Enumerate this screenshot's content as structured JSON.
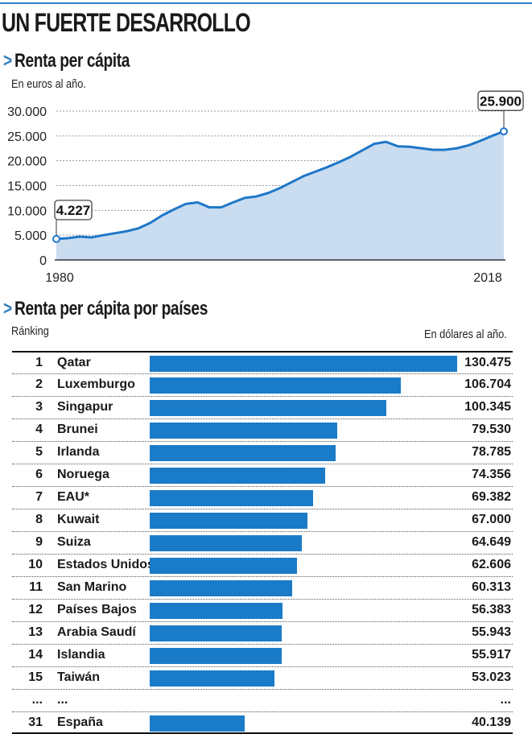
{
  "header": {
    "title": "UN FUERTE DESARROLLO"
  },
  "line_section": {
    "chevron": ">",
    "title": "Renta per cápita",
    "unit": "En euros al año."
  },
  "bar_section": {
    "chevron": ">",
    "title": "Renta per cápita por países",
    "rank_label": "Ránking",
    "unit": "En dólares al año."
  },
  "chart_data": [
    {
      "type": "area",
      "title": "Renta per cápita",
      "ylabel": "En euros al año.",
      "x_range": [
        1980,
        2018
      ],
      "ylim": [
        0,
        30000
      ],
      "yticks": [
        0,
        5000,
        10000,
        15000,
        20000,
        25000,
        30000
      ],
      "ytick_labels": [
        "0",
        "5.000",
        "10.000",
        "15.000",
        "20.000",
        "25.000",
        "30.000"
      ],
      "xtick_labels": [
        "1980",
        "2018"
      ],
      "grid": "horizontal",
      "color": "#1f77c8",
      "fill": "#c9dcf0",
      "x": [
        1980,
        1981,
        1982,
        1983,
        1984,
        1985,
        1986,
        1987,
        1988,
        1989,
        1990,
        1991,
        1992,
        1993,
        1994,
        1995,
        1996,
        1997,
        1998,
        1999,
        2000,
        2001,
        2002,
        2003,
        2004,
        2005,
        2006,
        2007,
        2008,
        2009,
        2010,
        2011,
        2012,
        2013,
        2014,
        2015,
        2016,
        2017,
        2018
      ],
      "y": [
        4227,
        4400,
        4700,
        4550,
        5000,
        5400,
        5800,
        6400,
        7500,
        9000,
        10200,
        11300,
        11600,
        10600,
        10600,
        11600,
        12500,
        12800,
        13500,
        14500,
        15700,
        16900,
        17800,
        18700,
        19700,
        20800,
        22100,
        23400,
        23800,
        22900,
        22800,
        22500,
        22200,
        22200,
        22500,
        23100,
        24000,
        25000,
        25900
      ],
      "annotations": [
        {
          "x": 1980,
          "y": 4227,
          "label": "4.227"
        },
        {
          "x": 2018,
          "y": 25900,
          "label": "25.900"
        }
      ]
    },
    {
      "type": "bar",
      "orientation": "horizontal",
      "title": "Renta per cápita por países",
      "ylabel": "En dólares al año.",
      "color": "#1a7bc8",
      "rows": [
        {
          "rank": "1",
          "name": "Qatar",
          "value": 130475,
          "label": "130.475"
        },
        {
          "rank": "2",
          "name": "Luxemburgo",
          "value": 106704,
          "label": "106.704"
        },
        {
          "rank": "3",
          "name": "Singapur",
          "value": 100345,
          "label": "100.345"
        },
        {
          "rank": "4",
          "name": "Brunei",
          "value": 79530,
          "label": "79.530"
        },
        {
          "rank": "5",
          "name": "Irlanda",
          "value": 78785,
          "label": "78.785"
        },
        {
          "rank": "6",
          "name": "Noruega",
          "value": 74356,
          "label": "74.356"
        },
        {
          "rank": "7",
          "name": "EAU*",
          "value": 69382,
          "label": "69.382"
        },
        {
          "rank": "8",
          "name": "Kuwait",
          "value": 67000,
          "label": "67.000"
        },
        {
          "rank": "9",
          "name": "Suiza",
          "value": 64649,
          "label": "64.649"
        },
        {
          "rank": "10",
          "name": "Estados Unidos",
          "value": 62606,
          "label": "62.606"
        },
        {
          "rank": "11",
          "name": "San Marino",
          "value": 60313,
          "label": "60.313"
        },
        {
          "rank": "12",
          "name": "Países Bajos",
          "value": 56383,
          "label": "56.383"
        },
        {
          "rank": "13",
          "name": "Arabia Saudí",
          "value": 55943,
          "label": "55.943"
        },
        {
          "rank": "14",
          "name": "Islandia",
          "value": 55917,
          "label": "55.917"
        },
        {
          "rank": "15",
          "name": "Taiwán",
          "value": 53023,
          "label": "53.023"
        },
        {
          "rank": "...",
          "name": "...",
          "value": null,
          "label": "..."
        },
        {
          "rank": "31",
          "name": "España",
          "value": 40139,
          "label": "40.139"
        }
      ]
    }
  ]
}
